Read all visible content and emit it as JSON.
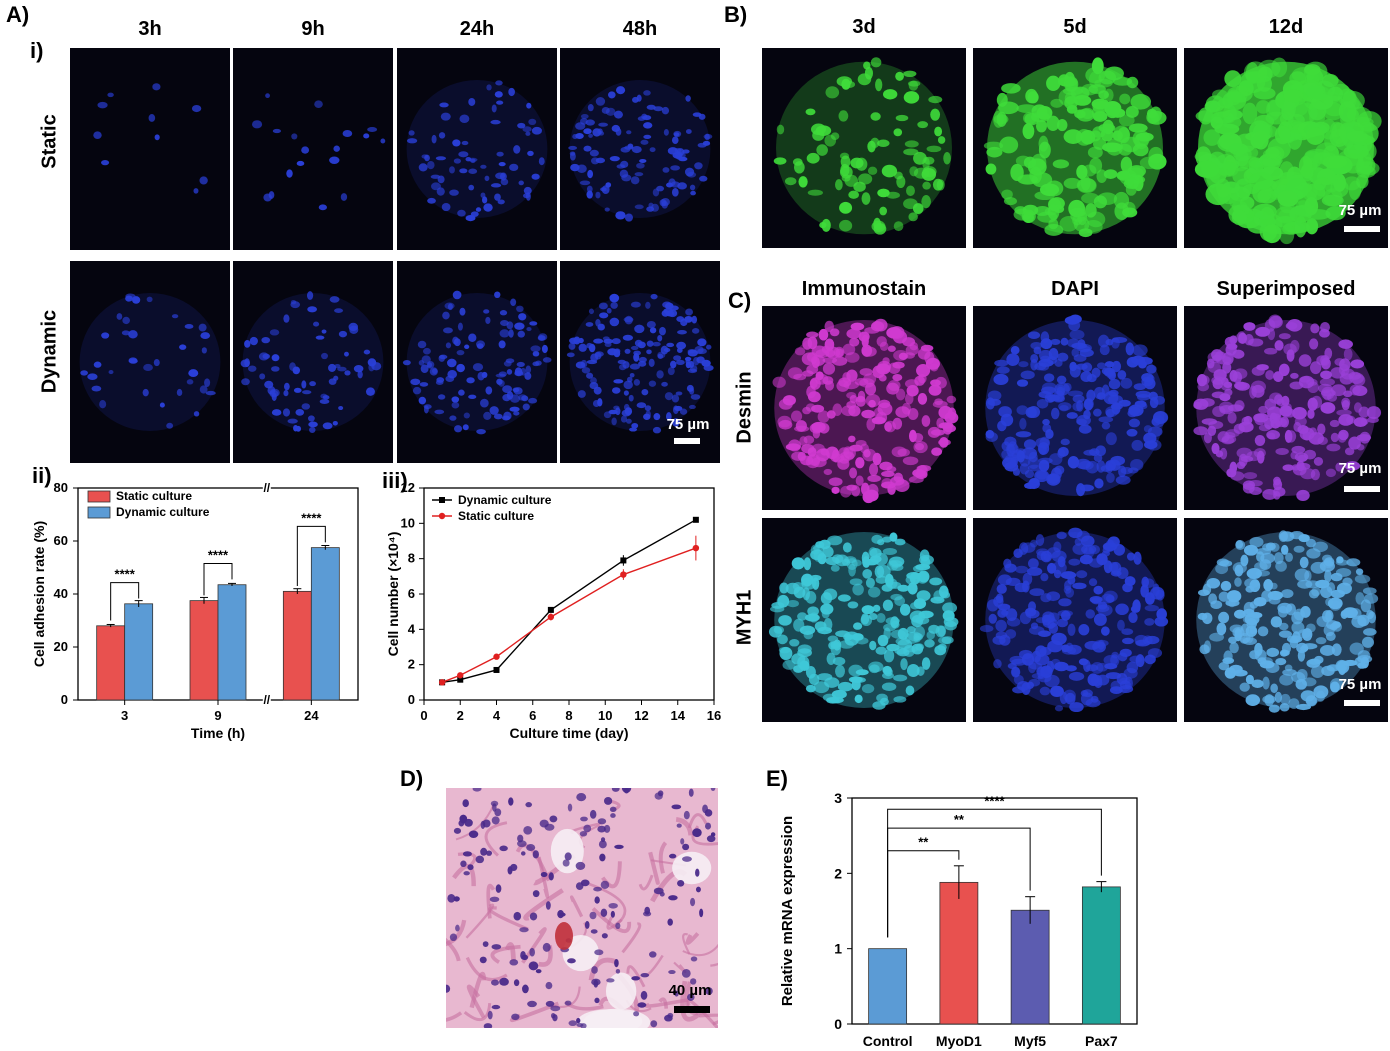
{
  "panels": {
    "A": "A)",
    "A_i": "i)",
    "A_ii": "ii)",
    "A_iii": "iii)",
    "B": "B)",
    "C": "C)",
    "D": "D)",
    "E": "E)"
  },
  "A_cols": [
    "3h",
    "9h",
    "24h",
    "48h"
  ],
  "A_rows": [
    "Static",
    "Dynamic"
  ],
  "B_cols": [
    "3d",
    "5d",
    "12d"
  ],
  "C_cols": [
    "Immunostain",
    "DAPI",
    "Superimposed"
  ],
  "C_rows": [
    "Desmin",
    "MYH1"
  ],
  "scalebars": {
    "A": "75 µm",
    "B": "75 µm",
    "C1": "75 µm",
    "C2": "75 µm",
    "D": "40 µm"
  },
  "colors": {
    "static": "#e8514f",
    "dynamic": "#5b9bd5",
    "dapi": "#2a3fd8",
    "green": "#3fdc3a",
    "magenta": "#d03ad0",
    "cyan": "#3fc8d8",
    "control": "#5b9bd5",
    "myod1": "#e8514f",
    "myf5": "#5c5cb0",
    "pax7": "#1fa59a"
  },
  "chart_data": [
    {
      "id": "A_ii",
      "type": "bar",
      "categories": [
        "3",
        "9",
        "24"
      ],
      "series": [
        {
          "name": "Static culture",
          "values": [
            28,
            37.5,
            41
          ],
          "errors": [
            0.5,
            1.2,
            1.0
          ]
        },
        {
          "name": "Dynamic culture",
          "values": [
            36.3,
            43.5,
            57.5
          ],
          "errors": [
            1.2,
            0.5,
            0.8
          ]
        }
      ],
      "significance": [
        "****",
        "****",
        "****"
      ],
      "xlabel": "Time (h)",
      "ylabel": "Cell adhesion rate (%)",
      "ylim": [
        0,
        80
      ],
      "yticks": [
        "0",
        "20",
        "40",
        "60",
        "80"
      ],
      "legend": "top-left"
    },
    {
      "id": "A_iii",
      "type": "line",
      "series": [
        {
          "name": "Dynamic culture",
          "x": [
            1,
            2,
            4,
            7,
            11,
            15
          ],
          "y": [
            1.0,
            1.15,
            1.7,
            5.1,
            7.9,
            10.2
          ],
          "errors": [
            0.05,
            0.05,
            0.05,
            0.1,
            0.3,
            0.1
          ]
        },
        {
          "name": "Static culture",
          "x": [
            1,
            2,
            4,
            7,
            11,
            15
          ],
          "y": [
            1.0,
            1.4,
            2.45,
            4.7,
            7.1,
            8.6
          ],
          "errors": [
            0.05,
            0.1,
            0.15,
            0.2,
            0.3,
            0.7
          ]
        }
      ],
      "xlabel": "Culture time (day)",
      "ylabel": "Cell number (×10⁴)",
      "xlim": [
        0,
        16
      ],
      "ylim": [
        0,
        12
      ],
      "xticks": [
        "0",
        "2",
        "4",
        "6",
        "8",
        "10",
        "12",
        "14",
        "16"
      ],
      "yticks": [
        "0",
        "2",
        "4",
        "6",
        "8",
        "10",
        "12"
      ],
      "legend": "top-left"
    },
    {
      "id": "E",
      "type": "bar",
      "categories": [
        "Control",
        "MyoD1",
        "Myf5",
        "Pax7"
      ],
      "values": [
        1.0,
        1.88,
        1.51,
        1.82
      ],
      "errors": [
        0,
        0.22,
        0.18,
        0.07
      ],
      "significance": [
        {
          "pair": [
            "Control",
            "MyoD1"
          ],
          "label": "**"
        },
        {
          "pair": [
            "Control",
            "Myf5"
          ],
          "label": "**"
        },
        {
          "pair": [
            "Control",
            "Pax7"
          ],
          "label": "****"
        }
      ],
      "ylabel": "Relative mRNA expression",
      "ylim": [
        0,
        3
      ],
      "yticks": [
        "0",
        "1",
        "2",
        "3"
      ]
    }
  ]
}
